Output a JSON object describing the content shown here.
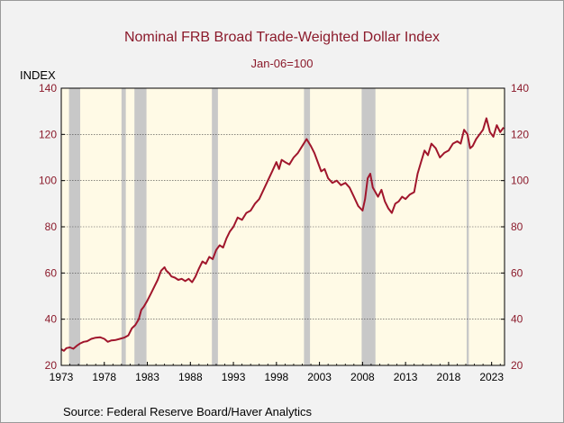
{
  "chart_data": {
    "type": "line",
    "title": "Nominal FRB Broad Trade-Weighted Dollar Index",
    "subtitle": "Jan-06=100",
    "ylabel": "INDEX",
    "source": "Source:  Federal Reserve Board/Haver Analytics",
    "xlim": [
      1973,
      2024.5
    ],
    "ylim": [
      20,
      140
    ],
    "yticks": [
      20,
      40,
      60,
      80,
      100,
      120,
      140
    ],
    "xticks": [
      {
        "value": 1973,
        "label": "1973"
      },
      {
        "value": 1978,
        "label": "1978"
      },
      {
        "value": 1983,
        "label": "1983"
      },
      {
        "value": 1988,
        "label": "1988"
      },
      {
        "value": 1993,
        "label": "1993"
      },
      {
        "value": 1998,
        "label": "1998"
      },
      {
        "value": 2003,
        "label": "2003"
      },
      {
        "value": 2008,
        "label": "2008"
      },
      {
        "value": 2013,
        "label": "2013"
      },
      {
        "value": 2018,
        "label": "2018"
      },
      {
        "value": 2023,
        "label": "2023"
      }
    ],
    "recessions": [
      [
        1973.9,
        1975.2
      ],
      [
        1980.0,
        1980.5
      ],
      [
        1981.5,
        1982.9
      ],
      [
        1990.5,
        1991.2
      ],
      [
        2001.2,
        2001.9
      ],
      [
        2007.9,
        2009.5
      ],
      [
        2020.1,
        2020.35
      ]
    ],
    "series": [
      {
        "x": [
          1973.0,
          1973.3,
          1973.6,
          1974.0,
          1974.4,
          1974.8,
          1975.2,
          1975.6,
          1976.0,
          1976.5,
          1977.0,
          1977.5,
          1978.0,
          1978.4,
          1978.8,
          1979.3,
          1979.8,
          1980.3,
          1980.8,
          1981.2,
          1981.6,
          1982.0,
          1982.3,
          1982.6,
          1983.0,
          1983.4,
          1983.8,
          1984.2,
          1984.6,
          1985.0,
          1985.2,
          1985.5,
          1985.8,
          1986.2,
          1986.6,
          1987.0,
          1987.4,
          1987.8,
          1988.2,
          1988.6,
          1989.0,
          1989.4,
          1989.8,
          1990.2,
          1990.6,
          1991.0,
          1991.4,
          1991.8,
          1992.2,
          1992.6,
          1993.0,
          1993.5,
          1994.0,
          1994.5,
          1995.0,
          1995.5,
          1996.0,
          1996.5,
          1997.0,
          1997.5,
          1998.0,
          1998.3,
          1998.6,
          1999.0,
          1999.5,
          2000.0,
          2000.5,
          2001.0,
          2001.5,
          2002.0,
          2002.4,
          2002.8,
          2003.2,
          2003.6,
          2004.0,
          2004.5,
          2005.0,
          2005.5,
          2006.0,
          2006.5,
          2007.0,
          2007.5,
          2008.0,
          2008.3,
          2008.6,
          2008.9,
          2009.2,
          2009.5,
          2009.8,
          2010.2,
          2010.6,
          2011.0,
          2011.4,
          2011.8,
          2012.2,
          2012.6,
          2013.0,
          2013.5,
          2014.0,
          2014.4,
          2014.8,
          2015.2,
          2015.6,
          2016.0,
          2016.5,
          2017.0,
          2017.5,
          2018.0,
          2018.5,
          2019.0,
          2019.4,
          2019.8,
          2020.2,
          2020.5,
          2020.8,
          2021.2,
          2021.6,
          2022.0,
          2022.4,
          2022.8,
          2023.2,
          2023.6,
          2024.0,
          2024.4
        ],
        "values": [
          27.0,
          26.3,
          27.5,
          27.8,
          27.2,
          28.5,
          29.5,
          30.2,
          30.5,
          31.5,
          32.0,
          32.2,
          31.5,
          30.2,
          30.8,
          31.0,
          31.5,
          32.0,
          33.0,
          36.0,
          37.5,
          40.0,
          44.0,
          45.5,
          48.0,
          51.0,
          54.0,
          57.0,
          61.0,
          62.5,
          61.0,
          60.0,
          58.5,
          58.0,
          57.0,
          57.5,
          56.5,
          57.5,
          56.0,
          58.5,
          62.0,
          65.0,
          64.0,
          67.0,
          66.0,
          70.0,
          72.0,
          71.0,
          75.0,
          78.0,
          80.0,
          84.0,
          83.0,
          86.0,
          87.0,
          90.0,
          92.0,
          96.0,
          100.0,
          104.0,
          108.0,
          105.0,
          109.0,
          108.0,
          107.0,
          110.0,
          112.0,
          115.0,
          118.0,
          115.0,
          112.0,
          108.0,
          104.0,
          105.0,
          101.0,
          99.0,
          100.0,
          98.0,
          99.0,
          97.0,
          93.0,
          89.0,
          87.0,
          92.0,
          101.0,
          103.0,
          97.0,
          95.0,
          93.0,
          96.0,
          91.0,
          88.0,
          86.0,
          90.0,
          91.0,
          93.0,
          92.0,
          94.0,
          95.0,
          103.0,
          108.0,
          113.0,
          111.0,
          116.0,
          114.0,
          110.0,
          112.0,
          113.0,
          116.0,
          117.0,
          116.0,
          122.0,
          120.0,
          114.0,
          115.0,
          118.0,
          120.0,
          122.0,
          127.0,
          121.0,
          119.0,
          124.0,
          121.0,
          123.0
        ]
      }
    ]
  },
  "colors": {
    "line": "#a0162c",
    "right_axis": "#8b1a2b",
    "left_axis": "#8b1a2b",
    "plot_bg": "#fffae6",
    "recession": "#c8c8c8"
  }
}
